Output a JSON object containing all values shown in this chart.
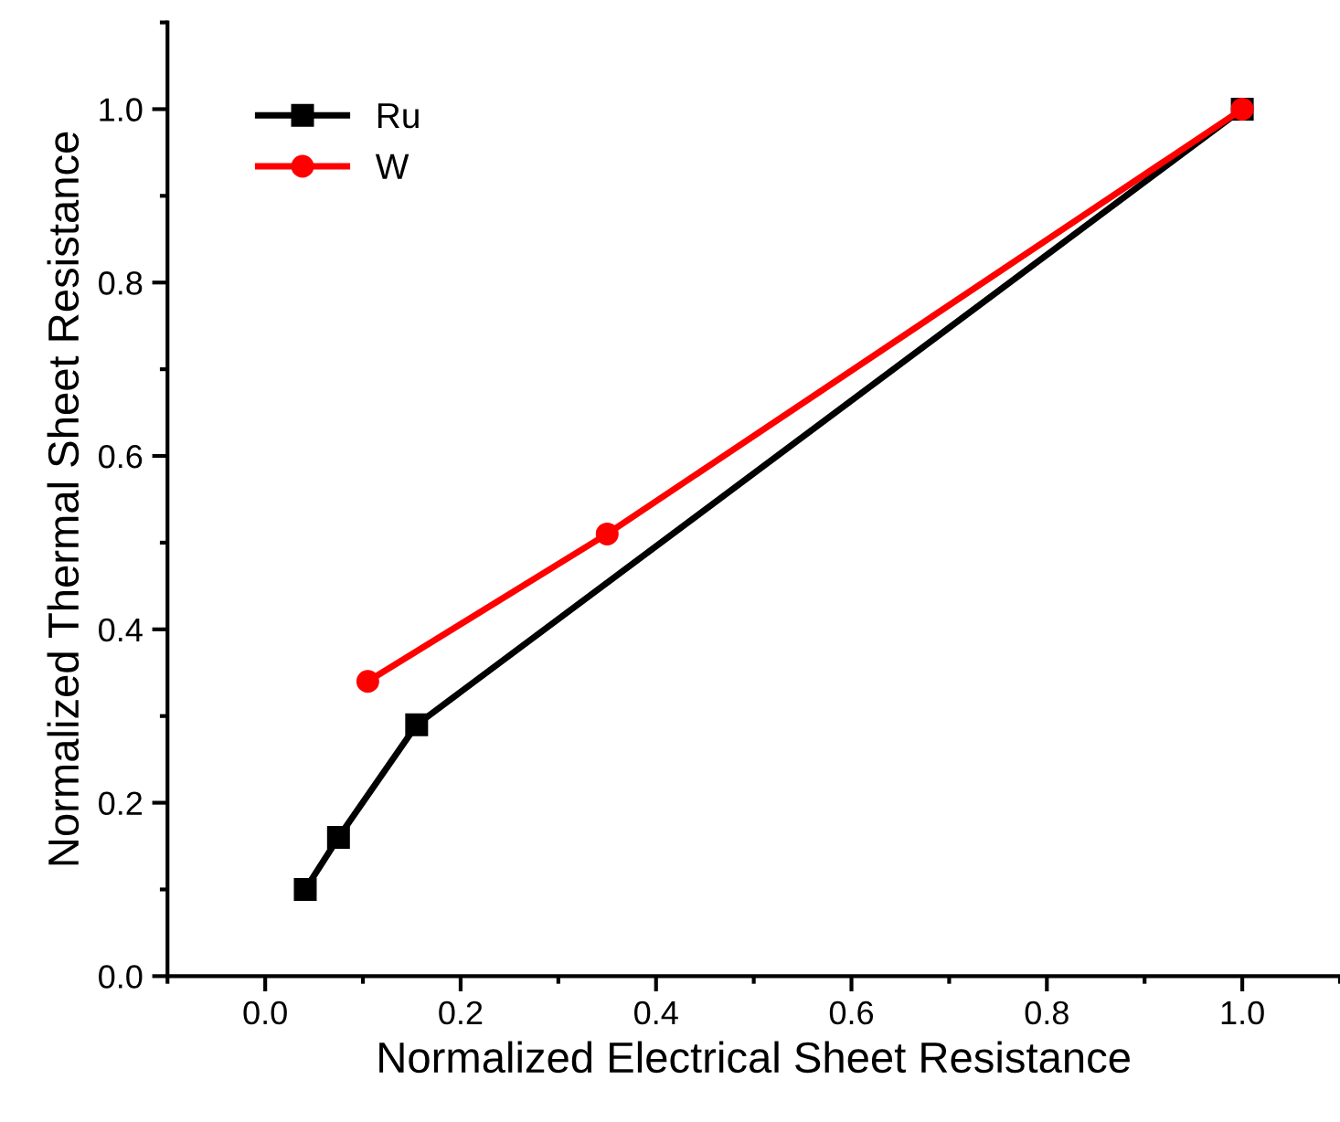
{
  "chart_data": {
    "type": "line",
    "xlabel": "Normalized Electrical Sheet Resistance",
    "ylabel": "Normalized Thermal Sheet Resistance",
    "xlim": [
      -0.1,
      1.1
    ],
    "ylim": [
      0,
      1.1
    ],
    "xticks": [
      {
        "value": 0,
        "label": "0.0"
      },
      0.2,
      0.4,
      0.6,
      0.8,
      {
        "value": 1,
        "label": "1.0"
      }
    ],
    "yticks": [
      {
        "value": 0,
        "label": "0.0"
      },
      0.2,
      0.4,
      0.6,
      0.8,
      {
        "value": 1,
        "label": "1.0"
      }
    ],
    "legend": "top left",
    "grid": false,
    "series": [
      {
        "name": "Ru",
        "color": "#000000",
        "marker": "square",
        "x": [
          0.041,
          0.075,
          0.155,
          1.0
        ],
        "values": [
          0.1,
          0.16,
          0.29,
          1.0
        ]
      },
      {
        "name": "W",
        "color": "#ff0000",
        "marker": "circle",
        "x": [
          0.105,
          0.35,
          1.0
        ],
        "values": [
          0.34,
          0.51,
          1.0
        ]
      }
    ]
  }
}
